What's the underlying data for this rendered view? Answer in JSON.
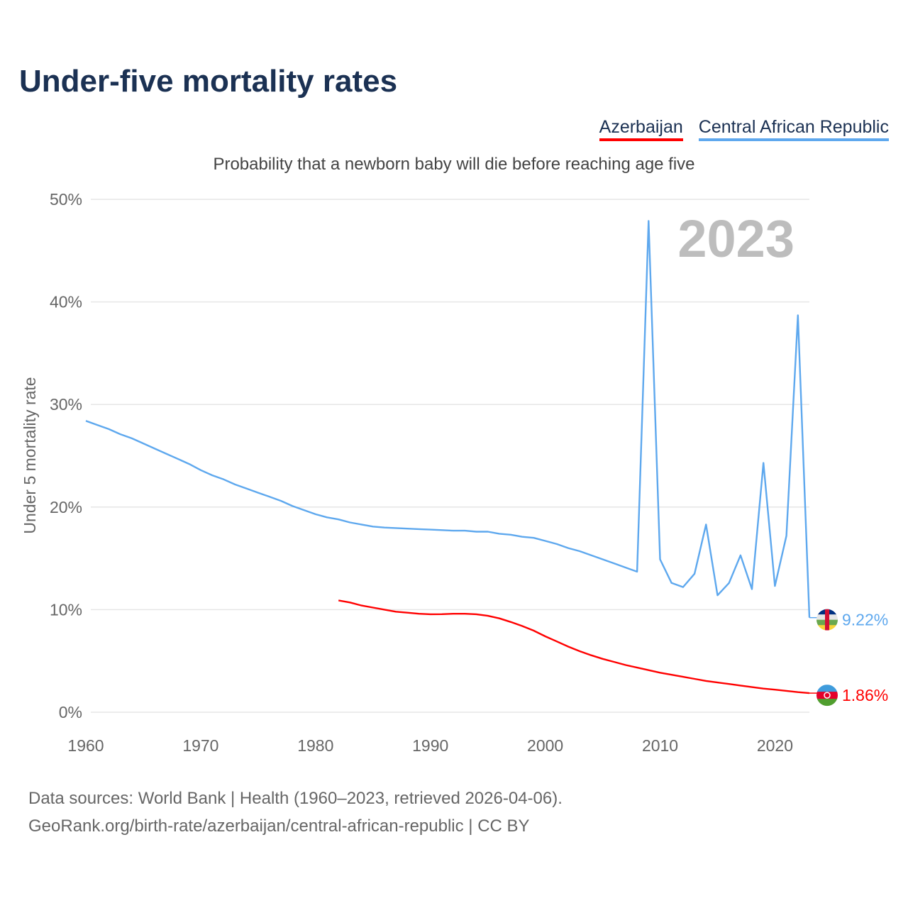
{
  "chart_data": {
    "type": "line",
    "title": "Under-five mortality rates",
    "subtitle": "Probability that a newborn baby will die before reaching age five",
    "ylabel": "Under 5 mortality rate",
    "xlabel": "",
    "ylim": [
      0,
      50
    ],
    "xlim": [
      1960,
      2023
    ],
    "yticks": [
      0,
      10,
      20,
      30,
      40,
      50
    ],
    "ytick_labels": [
      "0%",
      "10%",
      "20%",
      "30%",
      "40%",
      "50%"
    ],
    "xticks": [
      1960,
      1970,
      1980,
      1990,
      2000,
      2010,
      2020
    ],
    "xtick_labels": [
      "1960",
      "1970",
      "1980",
      "1990",
      "2000",
      "2010",
      "2020"
    ],
    "grid": true,
    "legend_position": "top-right",
    "year_label": "2023",
    "series": [
      {
        "name": "Azerbaijan",
        "color": "#ff0000",
        "end_label": "1.86%",
        "x": [
          1982,
          1983,
          1984,
          1985,
          1986,
          1987,
          1988,
          1989,
          1990,
          1991,
          1992,
          1993,
          1994,
          1995,
          1996,
          1997,
          1998,
          1999,
          2000,
          2001,
          2002,
          2003,
          2004,
          2005,
          2006,
          2007,
          2008,
          2009,
          2010,
          2011,
          2012,
          2013,
          2014,
          2015,
          2016,
          2017,
          2018,
          2019,
          2020,
          2021,
          2022,
          2023
        ],
        "values": [
          10.9,
          10.7,
          10.4,
          10.2,
          10.0,
          9.8,
          9.7,
          9.6,
          9.55,
          9.56,
          9.6,
          9.6,
          9.55,
          9.4,
          9.15,
          8.8,
          8.4,
          7.95,
          7.4,
          6.9,
          6.4,
          5.95,
          5.55,
          5.2,
          4.9,
          4.6,
          4.35,
          4.1,
          3.85,
          3.65,
          3.45,
          3.25,
          3.05,
          2.9,
          2.75,
          2.6,
          2.45,
          2.3,
          2.2,
          2.08,
          1.96,
          1.86
        ]
      },
      {
        "name": "Central African Republic",
        "color": "#5ea8ee",
        "end_label": "9.22%",
        "x": [
          1960,
          1961,
          1962,
          1963,
          1964,
          1965,
          1966,
          1967,
          1968,
          1969,
          1970,
          1971,
          1972,
          1973,
          1974,
          1975,
          1976,
          1977,
          1978,
          1979,
          1980,
          1981,
          1982,
          1983,
          1984,
          1985,
          1986,
          1987,
          1988,
          1989,
          1990,
          1991,
          1992,
          1993,
          1994,
          1995,
          1996,
          1997,
          1998,
          1999,
          2000,
          2001,
          2002,
          2003,
          2004,
          2005,
          2006,
          2007,
          2008,
          2009,
          2010,
          2011,
          2012,
          2013,
          2014,
          2015,
          2016,
          2017,
          2018,
          2019,
          2020,
          2021,
          2022,
          2023
        ],
        "values": [
          28.4,
          28.0,
          27.6,
          27.1,
          26.7,
          26.2,
          25.7,
          25.2,
          24.7,
          24.2,
          23.6,
          23.1,
          22.7,
          22.2,
          21.8,
          21.4,
          21.0,
          20.6,
          20.1,
          19.7,
          19.3,
          19.0,
          18.8,
          18.5,
          18.3,
          18.1,
          18.0,
          17.95,
          17.9,
          17.85,
          17.8,
          17.75,
          17.7,
          17.7,
          17.6,
          17.6,
          17.4,
          17.3,
          17.1,
          17.0,
          16.7,
          16.4,
          16.0,
          15.7,
          15.3,
          14.9,
          14.5,
          14.1,
          13.7,
          47.9,
          14.9,
          12.6,
          12.2,
          13.5,
          18.3,
          11.4,
          12.6,
          15.3,
          12.0,
          24.3,
          12.3,
          17.2,
          38.7,
          9.22
        ]
      }
    ]
  },
  "footer": {
    "line1": "Data sources: World Bank | Health (1960–2023, retrieved 2026-04-06).",
    "line2": "GeoRank.org/birth-rate/azerbaijan/central-african-republic | CC BY"
  }
}
